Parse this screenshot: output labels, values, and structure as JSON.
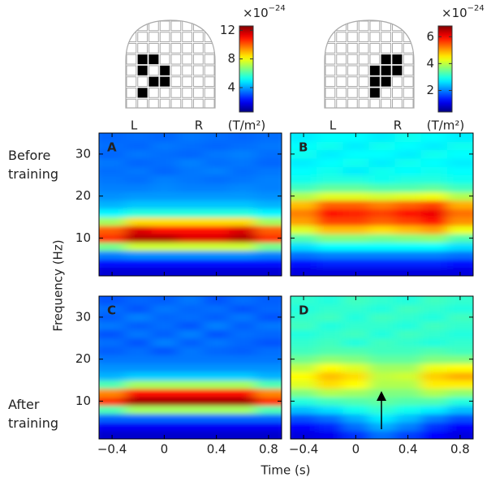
{
  "figure": {
    "y_label": "Frequency (Hz)",
    "x_label": "Time (s)",
    "row_labels": [
      "Before training",
      "After training"
    ]
  },
  "chart_data": [
    {
      "type": "heatmap",
      "colormap": "jet",
      "sides": [
        "L",
        "R"
      ],
      "colorbar": {
        "clim": [
          0.6,
          12.6
        ],
        "ticks": [
          4,
          8,
          12
        ],
        "multiplier": "×10",
        "exponent": "−24",
        "unit": "(T/m²)"
      },
      "x": [
        -0.4,
        -0.2,
        0,
        0.2,
        0.4,
        0.6,
        0.8
      ],
      "y": [
        2,
        4,
        6,
        8,
        10,
        12,
        14,
        16,
        18,
        20,
        22,
        24,
        26,
        28,
        30,
        32,
        34
      ],
      "xlim": [
        -0.5,
        0.9
      ],
      "ylim": [
        1,
        35
      ],
      "xticks": [
        {
          "value": -0.4,
          "label": "−0.4"
        },
        0,
        0.4,
        0.8
      ],
      "yticks": [
        10,
        20,
        30
      ],
      "panels": [
        {
          "label": "A",
          "values": [
            [
              1.6,
              1.6,
              1.6,
              1.6,
              1.6,
              1.6,
              1.6
            ],
            [
              2.2,
              2.3,
              2.3,
              2.3,
              2.3,
              2.3,
              2.2
            ],
            [
              3.6,
              3.8,
              3.8,
              3.8,
              3.8,
              3.8,
              3.6
            ],
            [
              6.5,
              7.5,
              7.5,
              7.5,
              7.5,
              7.5,
              6.5
            ],
            [
              10.5,
              12,
              12,
              11.5,
              11.5,
              12,
              10.5
            ],
            [
              10,
              11.5,
              11,
              11,
              11,
              11.5,
              10
            ],
            [
              7,
              8.5,
              8.5,
              8.5,
              8.5,
              8.5,
              7
            ],
            [
              5,
              5.5,
              5.5,
              5.5,
              5.5,
              5.5,
              5
            ],
            [
              4.2,
              4.4,
              4.4,
              4.4,
              4.4,
              4.4,
              4.2
            ],
            [
              3.8,
              3.9,
              3.9,
              3.9,
              3.9,
              3.9,
              3.8
            ],
            [
              3.6,
              3.6,
              3.7,
              3.6,
              3.6,
              3.7,
              3.6
            ],
            [
              3.5,
              3.4,
              3.6,
              3.5,
              3.4,
              3.5,
              3.6
            ],
            [
              3.4,
              3.5,
              3.3,
              3.5,
              3.6,
              3.4,
              3.5
            ],
            [
              3.5,
              3.3,
              3.4,
              3.6,
              3.4,
              3.5,
              3.3
            ],
            [
              3.3,
              3.5,
              3.4,
              3.3,
              3.5,
              3.6,
              3.4
            ],
            [
              3.4,
              3.3,
              3.5,
              3.4,
              3.3,
              3.4,
              3.5
            ],
            [
              3.3,
              3.4,
              3.3,
              3.5,
              3.4,
              3.3,
              3.4
            ]
          ]
        },
        {
          "label": "C",
          "values": [
            [
              1.5,
              1.5,
              1.5,
              1.5,
              1.5,
              1.5,
              1.5
            ],
            [
              2.0,
              2.0,
              2.0,
              2.0,
              2.0,
              2.0,
              2.0
            ],
            [
              3.3,
              3.3,
              3.3,
              3.3,
              3.3,
              3.3,
              3.3
            ],
            [
              6,
              7,
              7,
              7,
              7,
              7,
              6
            ],
            [
              10.5,
              12.2,
              12.2,
              12.2,
              12.2,
              12.2,
              10.5
            ],
            [
              9.5,
              11,
              11,
              11,
              11,
              11,
              9.5
            ],
            [
              6,
              7,
              7,
              7,
              7,
              7,
              6
            ],
            [
              4.2,
              4.5,
              4.5,
              4.5,
              4.5,
              4.5,
              4.2
            ],
            [
              3.8,
              3.8,
              3.8,
              3.8,
              3.8,
              3.8,
              3.8
            ],
            [
              3.5,
              3.5,
              3.5,
              3.5,
              3.5,
              3.5,
              3.5
            ],
            [
              3.2,
              3.4,
              3.1,
              3.5,
              3.3,
              3.2,
              3.4
            ],
            [
              3.4,
              3.1,
              3.6,
              3.2,
              3.5,
              3.3,
              3.1
            ],
            [
              3.1,
              3.5,
              3.2,
              3.6,
              3.1,
              3.4,
              3.3
            ],
            [
              3.5,
              3.2,
              3.4,
              3.1,
              3.6,
              3.2,
              3.5
            ],
            [
              3.2,
              3.6,
              3.3,
              3.4,
              3.2,
              3.5,
              3.1
            ],
            [
              3.4,
              3.1,
              3.5,
              3.3,
              3.4,
              3.1,
              3.3
            ],
            [
              3.1,
              3.3,
              3.2,
              3.5,
              3.1,
              3.4,
              3.2
            ]
          ]
        }
      ]
    },
    {
      "type": "heatmap",
      "colormap": "jet",
      "sides": [
        "L",
        "R"
      ],
      "colorbar": {
        "clim": [
          0.4,
          6.8
        ],
        "ticks": [
          2,
          4,
          6
        ],
        "multiplier": "×10",
        "exponent": "−24",
        "unit": "(T/m²)"
      },
      "x": [
        -0.4,
        -0.2,
        0,
        0.2,
        0.4,
        0.6,
        0.8
      ],
      "y": [
        2,
        4,
        6,
        8,
        10,
        12,
        14,
        16,
        18,
        20,
        22,
        24,
        26,
        28,
        30,
        32,
        34
      ],
      "xlim": [
        -0.5,
        0.9
      ],
      "ylim": [
        1,
        35
      ],
      "xticks": [
        {
          "value": -0.4,
          "label": "−0.4"
        },
        0,
        0.4,
        0.8
      ],
      "yticks": [
        10,
        20,
        30
      ],
      "panels": [
        {
          "label": "B",
          "values": [
            [
              1.0,
              1.0,
              1.0,
              1.0,
              1.0,
              1.0,
              1.0
            ],
            [
              1.3,
              1.4,
              1.4,
              1.4,
              1.4,
              1.4,
              1.3
            ],
            [
              1.9,
              2.0,
              2.0,
              2.0,
              2.0,
              2.0,
              1.9
            ],
            [
              2.6,
              2.8,
              2.8,
              2.8,
              2.8,
              2.8,
              2.6
            ],
            [
              3.3,
              3.6,
              3.6,
              3.5,
              3.6,
              3.7,
              3.3
            ],
            [
              4.2,
              4.8,
              4.8,
              4.6,
              4.8,
              5.0,
              4.3
            ],
            [
              5.0,
              5.6,
              5.6,
              5.4,
              5.6,
              5.9,
              5.1
            ],
            [
              5.2,
              5.9,
              5.8,
              5.6,
              5.9,
              6.1,
              5.3
            ],
            [
              4.8,
              5.4,
              5.4,
              5.2,
              5.4,
              5.6,
              4.9
            ],
            [
              3.9,
              4.2,
              4.2,
              4.1,
              4.2,
              4.3,
              3.9
            ],
            [
              3.2,
              3.4,
              3.4,
              3.3,
              3.3,
              3.4,
              3.2
            ],
            [
              2.9,
              3.0,
              3.0,
              2.9,
              3.0,
              3.0,
              2.9
            ],
            [
              2.8,
              2.9,
              2.7,
              2.9,
              2.8,
              2.9,
              2.8
            ],
            [
              2.7,
              2.8,
              2.9,
              2.7,
              2.9,
              2.8,
              2.7
            ],
            [
              2.9,
              2.7,
              2.8,
              2.8,
              2.7,
              2.9,
              2.8
            ],
            [
              2.8,
              2.9,
              2.7,
              2.9,
              2.8,
              2.7,
              2.9
            ],
            [
              2.7,
              2.8,
              2.8,
              2.7,
              2.9,
              2.8,
              2.7
            ]
          ]
        },
        {
          "label": "D",
          "values": [
            [
              1.0,
              1.1,
              1.5,
              1.9,
              1.6,
              1.2,
              1.0
            ],
            [
              1.2,
              1.4,
              1.9,
              2.3,
              2.0,
              1.5,
              1.2
            ],
            [
              1.7,
              1.9,
              2.3,
              2.7,
              2.4,
              2.0,
              1.7
            ],
            [
              2.4,
              2.6,
              2.9,
              3.1,
              2.9,
              2.7,
              2.4
            ],
            [
              3.0,
              3.2,
              3.3,
              3.4,
              3.3,
              3.3,
              3.0
            ],
            [
              3.6,
              3.9,
              3.8,
              3.6,
              3.6,
              3.9,
              3.7
            ],
            [
              4.2,
              4.6,
              4.4,
              3.9,
              3.9,
              4.5,
              4.5
            ],
            [
              4.4,
              4.8,
              4.6,
              4.0,
              4.1,
              4.7,
              4.9
            ],
            [
              4.0,
              4.4,
              4.2,
              3.8,
              3.8,
              4.3,
              4.4
            ],
            [
              3.5,
              3.7,
              3.6,
              3.4,
              3.4,
              3.6,
              3.6
            ],
            [
              3.2,
              3.3,
              3.3,
              3.2,
              3.2,
              3.3,
              3.2
            ],
            [
              3.1,
              3.2,
              3.0,
              3.2,
              3.1,
              3.0,
              3.1
            ],
            [
              3.0,
              3.1,
              3.2,
              3.0,
              3.2,
              3.1,
              3.0
            ],
            [
              3.2,
              3.0,
              3.1,
              3.1,
              3.0,
              3.2,
              3.1
            ],
            [
              3.1,
              3.2,
              3.0,
              3.2,
              3.1,
              3.0,
              3.2
            ],
            [
              3.0,
              3.1,
              3.1,
              3.0,
              3.2,
              3.1,
              3.0
            ],
            [
              3.1,
              3.0,
              3.2,
              3.1,
              3.0,
              3.2,
              3.1
            ]
          ]
        }
      ]
    }
  ]
}
